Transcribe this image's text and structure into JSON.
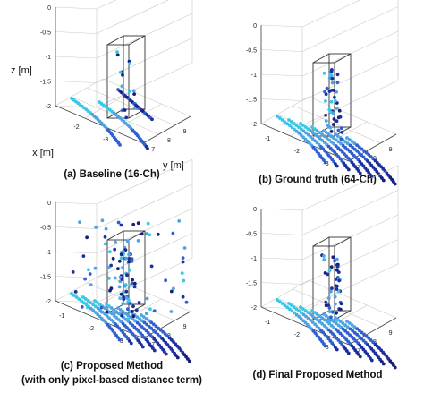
{
  "chart_data": [
    {
      "type": "scatter",
      "caption": "(a) Baseline (16-Ch)",
      "axis_labels": {
        "x": "x [m]",
        "y": "y [m]",
        "z": "z [m]"
      },
      "show_axis_labels": true,
      "x_ticks": [
        "-2",
        "-3"
      ],
      "y_ticks": [
        "7",
        "8",
        "9"
      ],
      "z_ticks": [
        "0",
        "-0.5",
        "-1",
        "-1.5",
        "-2"
      ],
      "density": "sparse"
    },
    {
      "type": "scatter",
      "caption": "(b) Ground truth (64-Ch)",
      "show_axis_labels": false,
      "x_ticks": [
        "-1",
        "-2",
        "-3"
      ],
      "y_ticks": [
        "7",
        "8",
        "9"
      ],
      "z_ticks": [
        "0",
        "-0.5",
        "-1",
        "-1.5",
        "-2"
      ],
      "density": "dense"
    },
    {
      "type": "scatter",
      "caption": "(c) Proposed Method",
      "caption2": "(with only pixel-based distance term)",
      "show_axis_labels": false,
      "x_ticks": [
        "-1",
        "-2",
        "-3"
      ],
      "y_ticks": [
        "7",
        "8",
        "9"
      ],
      "z_ticks": [
        "0",
        "-0.5",
        "-1",
        "-1.5",
        "-2"
      ],
      "density": "noisy"
    },
    {
      "type": "scatter",
      "caption": "(d) Final Proposed Method",
      "show_axis_labels": false,
      "x_ticks": [
        "-1",
        "-2",
        "-3"
      ],
      "y_ticks": [
        "7",
        "8",
        "9"
      ],
      "z_ticks": [
        "0",
        "-0.5",
        "-1",
        "-1.5",
        "-2"
      ],
      "density": "dense"
    }
  ],
  "colors": {
    "cyan": "#37c8e6",
    "light_blue": "#4fa3e0",
    "blue": "#2f5fd0",
    "dark_blue": "#1c2fa0",
    "navy": "#16207a"
  }
}
